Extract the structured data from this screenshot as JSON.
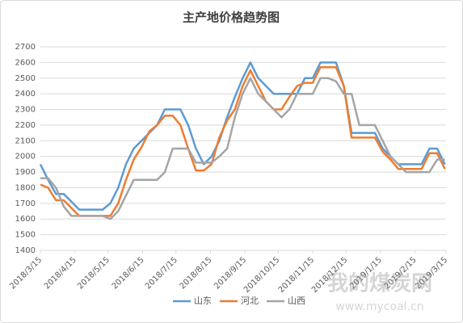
{
  "chart_data": {
    "type": "line",
    "title": "主产地价格趋势图",
    "x": [
      "2018/3/15",
      "2018/3/22",
      "2018/3/29",
      "2018/4/5",
      "2018/4/12",
      "2018/4/19",
      "2018/4/26",
      "2018/5/3",
      "2018/5/10",
      "2018/5/17",
      "2018/5/24",
      "2018/5/31",
      "2018/6/7",
      "2018/6/14",
      "2018/6/21",
      "2018/6/28",
      "2018/7/5",
      "2018/7/12",
      "2018/7/19",
      "2018/7/26",
      "2018/8/2",
      "2018/8/9",
      "2018/8/16",
      "2018/8/23",
      "2018/8/30",
      "2018/9/6",
      "2018/9/13",
      "2018/9/20",
      "2018/9/27",
      "2018/10/4",
      "2018/10/11",
      "2018/10/18",
      "2018/10/25",
      "2018/11/1",
      "2018/11/8",
      "2018/11/15",
      "2018/11/22",
      "2018/11/29",
      "2018/12/6",
      "2018/12/13",
      "2018/12/20",
      "2018/12/27",
      "2019/1/3",
      "2019/1/10",
      "2019/1/17",
      "2019/1/24",
      "2019/1/31",
      "2019/2/7",
      "2019/2/14",
      "2019/2/21",
      "2019/2/28",
      "2019/3/7",
      "2019/3/14"
    ],
    "series": [
      {
        "name": "山东",
        "color": "#5b9bd5",
        "values": [
          1950,
          1850,
          1760,
          1760,
          1710,
          1660,
          1660,
          1660,
          1660,
          1700,
          1800,
          1950,
          2050,
          2100,
          2150,
          2200,
          2300,
          2300,
          2300,
          2200,
          2050,
          1950,
          2000,
          2100,
          2250,
          2380,
          2500,
          2600,
          2500,
          2450,
          2400,
          2400,
          2400,
          2400,
          2500,
          2500,
          2600,
          2600,
          2600,
          2450,
          2150,
          2150,
          2150,
          2150,
          2050,
          2000,
          1950,
          1950,
          1950,
          1950,
          2050,
          2050,
          1950
        ]
      },
      {
        "name": "河北",
        "color": "#ed7d31",
        "values": [
          1820,
          1800,
          1720,
          1720,
          1670,
          1620,
          1620,
          1620,
          1620,
          1620,
          1700,
          1850,
          1980,
          2060,
          2160,
          2200,
          2260,
          2260,
          2200,
          2050,
          1910,
          1910,
          1950,
          2120,
          2230,
          2300,
          2450,
          2550,
          2450,
          2350,
          2300,
          2300,
          2380,
          2450,
          2470,
          2470,
          2570,
          2570,
          2570,
          2450,
          2120,
          2120,
          2120,
          2120,
          2030,
          1980,
          1920,
          1920,
          1920,
          1920,
          2020,
          2020,
          1920
        ]
      },
      {
        "name": "山西",
        "color": "#a5a5a5",
        "values": [
          1860,
          1860,
          1800,
          1680,
          1620,
          1620,
          1620,
          1620,
          1620,
          1600,
          1650,
          1750,
          1850,
          1850,
          1850,
          1850,
          1900,
          2050,
          2050,
          2050,
          1960,
          1960,
          1960,
          2000,
          2050,
          2250,
          2400,
          2500,
          2400,
          2350,
          2300,
          2250,
          2300,
          2400,
          2400,
          2400,
          2500,
          2500,
          2480,
          2400,
          2400,
          2200,
          2200,
          2200,
          2100,
          2000,
          1950,
          1900,
          1900,
          1900,
          1900,
          1980,
          1980
        ]
      }
    ],
    "xlim": [
      "2018/3/15",
      "2019/3/15"
    ],
    "xticks": [
      "2018/3/15",
      "2018/4/15",
      "2018/5/15",
      "2018/6/15",
      "2018/7/15",
      "2018/8/15",
      "2018/9/15",
      "2018/10/15",
      "2018/11/15",
      "2018/12/15",
      "2019/1/15",
      "2019/2/15",
      "2019/3/15"
    ],
    "ylim": [
      1400,
      2700
    ],
    "yticks": [
      1400,
      1500,
      1600,
      1700,
      1800,
      1900,
      2000,
      2100,
      2200,
      2300,
      2400,
      2500,
      2600,
      2700
    ],
    "grid": true,
    "legend": "bottom",
    "watermark": {
      "title": "我的煤炭网",
      "url": "www.mycoal.cn"
    }
  }
}
